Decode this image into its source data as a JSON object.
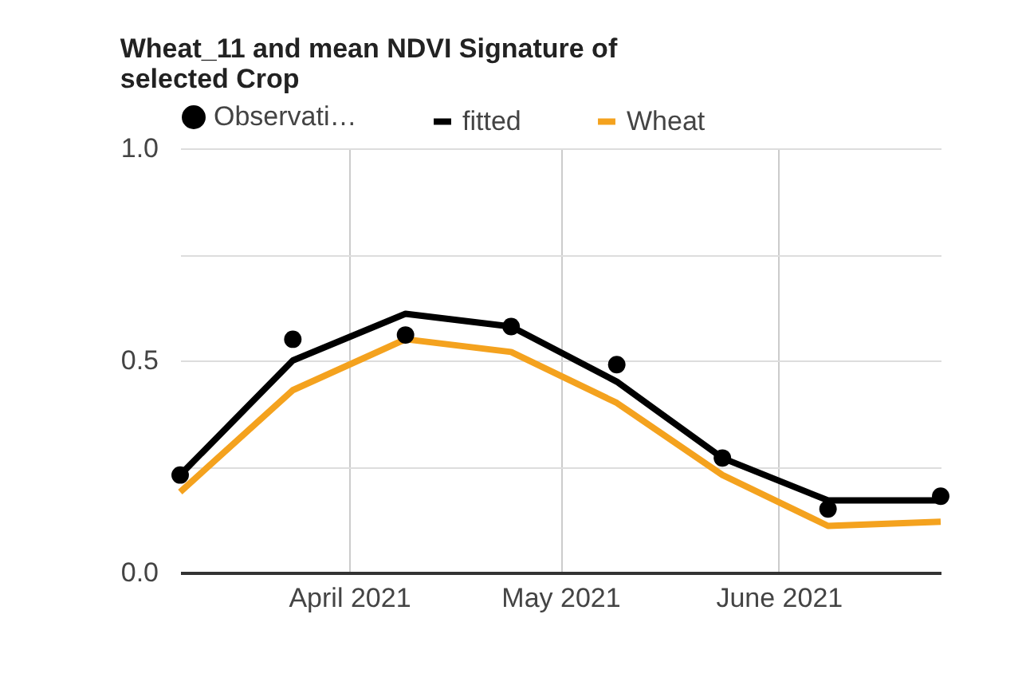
{
  "chart_data": {
    "type": "line",
    "title": [
      "Wheat_11 and mean NDVI Signature of",
      "selected Crop"
    ],
    "x": [
      "2021-03-08",
      "2021-03-24",
      "2021-04-09",
      "2021-04-24",
      "2021-05-09",
      "2021-05-24",
      "2021-06-08",
      "2021-06-24"
    ],
    "series": [
      {
        "name": "Observati…",
        "type": "scatter",
        "marker": "circle",
        "color": "#000000",
        "values": [
          0.23,
          0.55,
          0.56,
          0.58,
          0.49,
          0.27,
          0.15,
          0.18
        ]
      },
      {
        "name": "fitted",
        "color": "#000000",
        "values": [
          0.23,
          0.5,
          0.61,
          0.58,
          0.45,
          0.27,
          0.17,
          0.17
        ]
      },
      {
        "name": "Wheat",
        "color": "#f4a21e",
        "values": [
          0.19,
          0.43,
          0.55,
          0.52,
          0.4,
          0.23,
          0.11,
          0.12
        ]
      }
    ],
    "xlim": [
      "2021-03-08",
      "2021-06-24"
    ],
    "xticks": [
      {
        "value": "2021-04-01",
        "label": "April 2021"
      },
      {
        "value": "2021-05-01",
        "label": "May 2021"
      },
      {
        "value": "2021-06-01",
        "label": "June 2021"
      }
    ],
    "ylim": [
      0,
      1
    ],
    "yticks": [
      {
        "value": 0,
        "label": "0.0"
      },
      {
        "value": 0.25,
        "label": null
      },
      {
        "value": 0.5,
        "label": "0.5"
      },
      {
        "value": 0.75,
        "label": null
      },
      {
        "value": 1,
        "label": "1.0"
      }
    ],
    "grid": true,
    "legend": "top"
  }
}
